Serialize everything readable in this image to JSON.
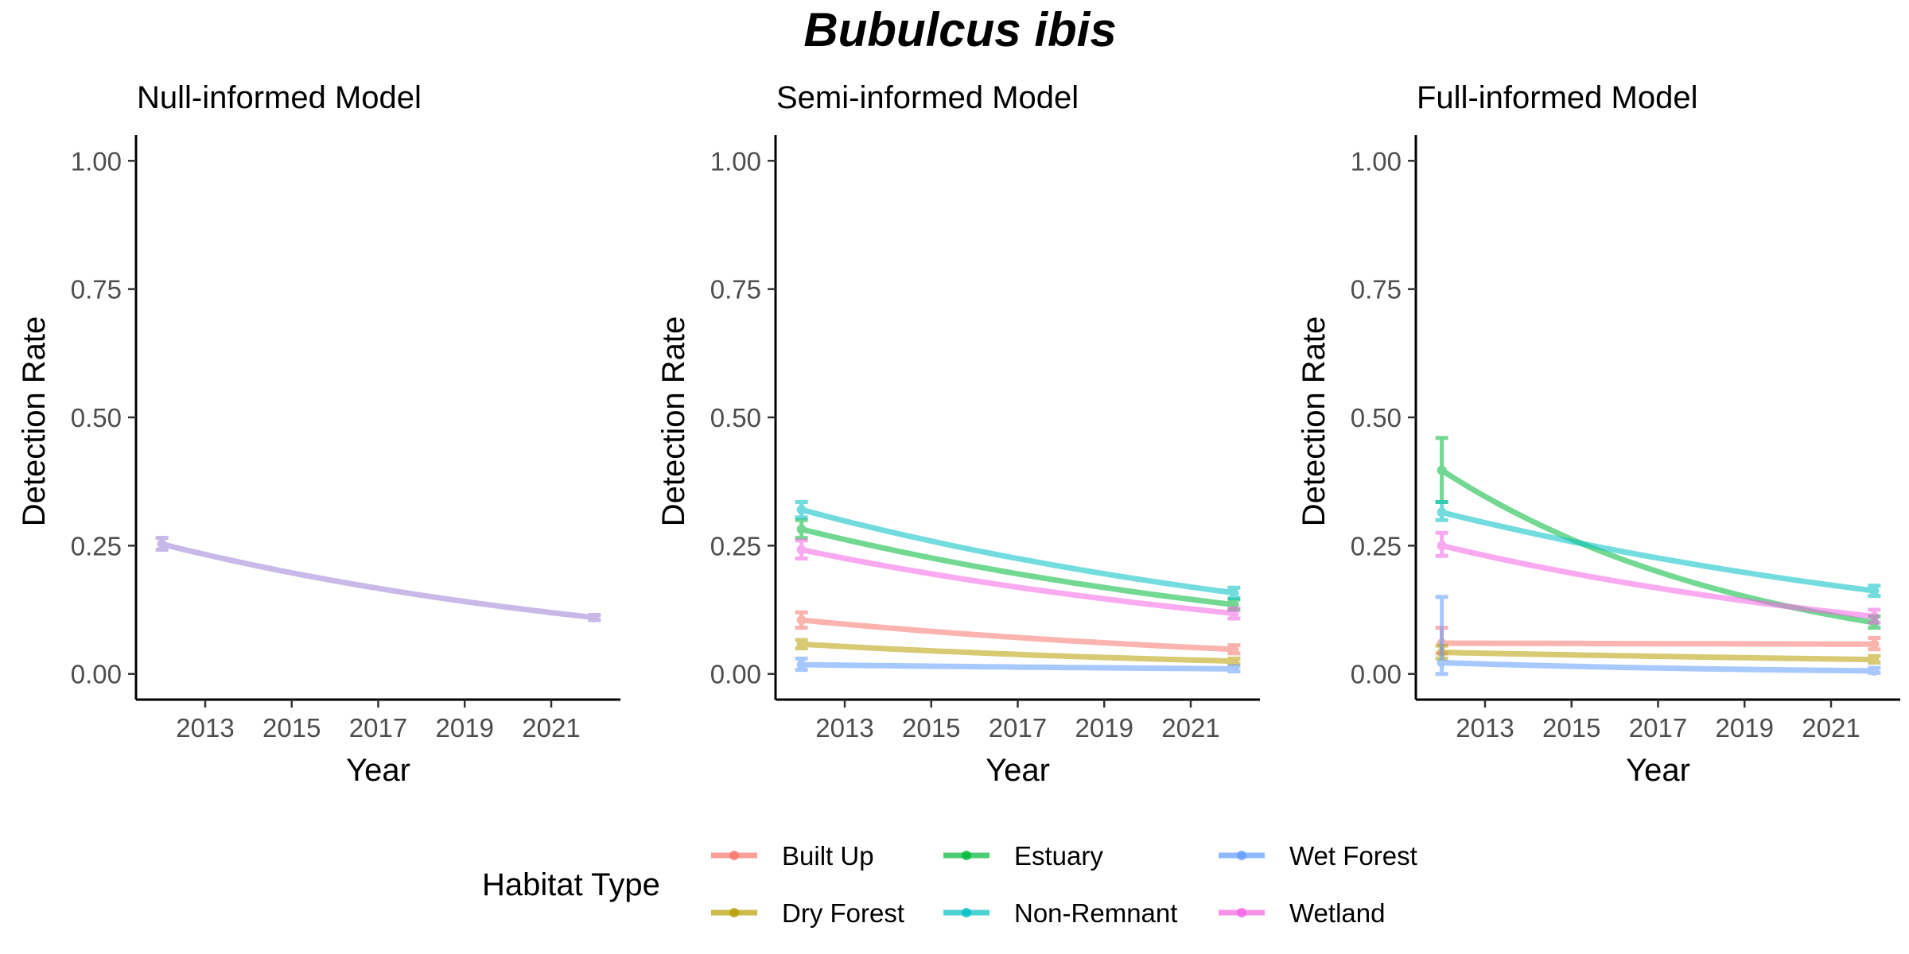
{
  "title": "Bubulcus ibis",
  "legend": {
    "title": "Habitat Type",
    "items": [
      {
        "label": "Built Up",
        "color": "#F8766D"
      },
      {
        "label": "Dry Forest",
        "color": "#B79F00"
      },
      {
        "label": "Estuary",
        "color": "#00BA38"
      },
      {
        "label": "Non-Remnant",
        "color": "#00BFC4"
      },
      {
        "label": "Wet Forest",
        "color": "#619CFF"
      },
      {
        "label": "Wetland",
        "color": "#F564E3"
      }
    ]
  },
  "chart_data": [
    {
      "type": "line",
      "title": "Null-informed Model",
      "xlabel": "Year",
      "ylabel": "Detection Rate",
      "xlim": [
        2011.4,
        2022.6
      ],
      "ylim": [
        -0.05,
        1.05
      ],
      "xticks": [
        "2013",
        "2015",
        "2017",
        "2019",
        "2021"
      ],
      "yticks": [
        "0.00",
        "0.25",
        "0.50",
        "0.75",
        "1.00"
      ],
      "series": [
        {
          "name": "",
          "color": "#9B7FD6",
          "x": [
            2012,
            2022
          ],
          "y": [
            0.253,
            0.11
          ],
          "err_low": [
            0.242,
            0.105
          ],
          "err_high": [
            0.265,
            0.115
          ]
        }
      ]
    },
    {
      "type": "line",
      "title": "Semi-informed Model",
      "xlabel": "Year",
      "ylabel": "Detection Rate",
      "xlim": [
        2011.4,
        2022.6
      ],
      "ylim": [
        -0.05,
        1.05
      ],
      "xticks": [
        "2013",
        "2015",
        "2017",
        "2019",
        "2021"
      ],
      "yticks": [
        "0.00",
        "0.25",
        "0.50",
        "0.75",
        "1.00"
      ],
      "series": [
        {
          "name": "Built Up",
          "color": "#F8766D",
          "x": [
            2012,
            2022
          ],
          "y": [
            0.105,
            0.048
          ],
          "err_low": [
            0.09,
            0.04
          ],
          "err_high": [
            0.12,
            0.056
          ]
        },
        {
          "name": "Dry Forest",
          "color": "#B79F00",
          "x": [
            2012,
            2022
          ],
          "y": [
            0.058,
            0.025
          ],
          "err_low": [
            0.05,
            0.02
          ],
          "err_high": [
            0.066,
            0.03
          ]
        },
        {
          "name": "Estuary",
          "color": "#00BA38",
          "x": [
            2012,
            2022
          ],
          "y": [
            0.282,
            0.135
          ],
          "err_low": [
            0.265,
            0.125
          ],
          "err_high": [
            0.3,
            0.145
          ]
        },
        {
          "name": "Non-Remnant",
          "color": "#00BFC4",
          "x": [
            2012,
            2022
          ],
          "y": [
            0.32,
            0.158
          ],
          "err_low": [
            0.305,
            0.148
          ],
          "err_high": [
            0.335,
            0.168
          ]
        },
        {
          "name": "Wet Forest",
          "color": "#619CFF",
          "x": [
            2012,
            2022
          ],
          "y": [
            0.018,
            0.01
          ],
          "err_low": [
            0.008,
            0.005
          ],
          "err_high": [
            0.03,
            0.015
          ]
        },
        {
          "name": "Wetland",
          "color": "#F564E3",
          "x": [
            2012,
            2022
          ],
          "y": [
            0.242,
            0.118
          ],
          "err_low": [
            0.225,
            0.108
          ],
          "err_high": [
            0.26,
            0.128
          ]
        }
      ]
    },
    {
      "type": "line",
      "title": "Full-informed Model",
      "xlabel": "Year",
      "ylabel": "Detection Rate",
      "xlim": [
        2011.4,
        2022.6
      ],
      "ylim": [
        -0.05,
        1.05
      ],
      "xticks": [
        "2013",
        "2015",
        "2017",
        "2019",
        "2021"
      ],
      "yticks": [
        "0.00",
        "0.25",
        "0.50",
        "0.75",
        "1.00"
      ],
      "series": [
        {
          "name": "Built Up",
          "color": "#F8766D",
          "x": [
            2012,
            2022
          ],
          "y": [
            0.06,
            0.058
          ],
          "err_low": [
            0.04,
            0.048
          ],
          "err_high": [
            0.09,
            0.07
          ]
        },
        {
          "name": "Dry Forest",
          "color": "#B79F00",
          "x": [
            2012,
            2022
          ],
          "y": [
            0.042,
            0.028
          ],
          "err_low": [
            0.03,
            0.022
          ],
          "err_high": [
            0.055,
            0.035
          ]
        },
        {
          "name": "Estuary",
          "color": "#00BA38",
          "x": [
            2012,
            2022
          ],
          "y": [
            0.397,
            0.1
          ],
          "err_low": [
            0.335,
            0.09
          ],
          "err_high": [
            0.46,
            0.112
          ]
        },
        {
          "name": "Non-Remnant",
          "color": "#00BFC4",
          "x": [
            2012,
            2022
          ],
          "y": [
            0.315,
            0.162
          ],
          "err_low": [
            0.3,
            0.152
          ],
          "err_high": [
            0.335,
            0.172
          ]
        },
        {
          "name": "Wet Forest",
          "color": "#619CFF",
          "x": [
            2012,
            2022
          ],
          "y": [
            0.022,
            0.006
          ],
          "err_low": [
            0.0,
            0.002
          ],
          "err_high": [
            0.15,
            0.012
          ]
        },
        {
          "name": "Wetland",
          "color": "#F564E3",
          "x": [
            2012,
            2022
          ],
          "y": [
            0.25,
            0.112
          ],
          "err_low": [
            0.23,
            0.1
          ],
          "err_high": [
            0.275,
            0.125
          ]
        }
      ]
    }
  ]
}
